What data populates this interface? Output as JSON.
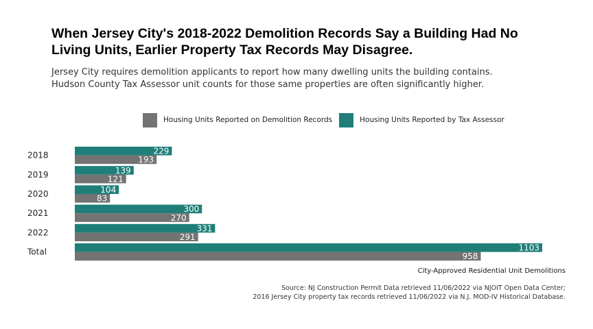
{
  "chart_data": {
    "type": "bar",
    "orientation": "horizontal",
    "title": "When Jersey City's 2018-2022 Demolition Records Say a Building Had No Living Units, Earlier Property Tax Records May Disagree.",
    "subtitle_line1": "Jersey City requires demolition applicants to report how many dwelling units the building contains.",
    "subtitle_line2": "Hudson County Tax Assessor unit counts for those same properties are often significantly higher.",
    "categories": [
      "2018",
      "2019",
      "2020",
      "2021",
      "2022",
      "Total"
    ],
    "series": [
      {
        "name": "Housing Units Reported on Demolition Records",
        "color": "#737373",
        "values": [
          193,
          121,
          83,
          270,
          291,
          958
        ]
      },
      {
        "name": "Housing Units Reported by Tax Assessor",
        "color": "#1f7f78",
        "values": [
          229,
          139,
          104,
          300,
          331,
          1103
        ]
      }
    ],
    "xlabel": "City-Approved Residential Unit Demolitions",
    "xlim": [
      0,
      1103
    ],
    "grid": false,
    "legend_position": "top",
    "caption_line1": "Source: NJ Construction Permit Data retrieved 11/06/2022 via NJOIT Open Data Center;",
    "caption_line2": "2016 Jersey City property tax records retrieved 11/06/2022 via N.J. MOD-IV Historical Database."
  }
}
